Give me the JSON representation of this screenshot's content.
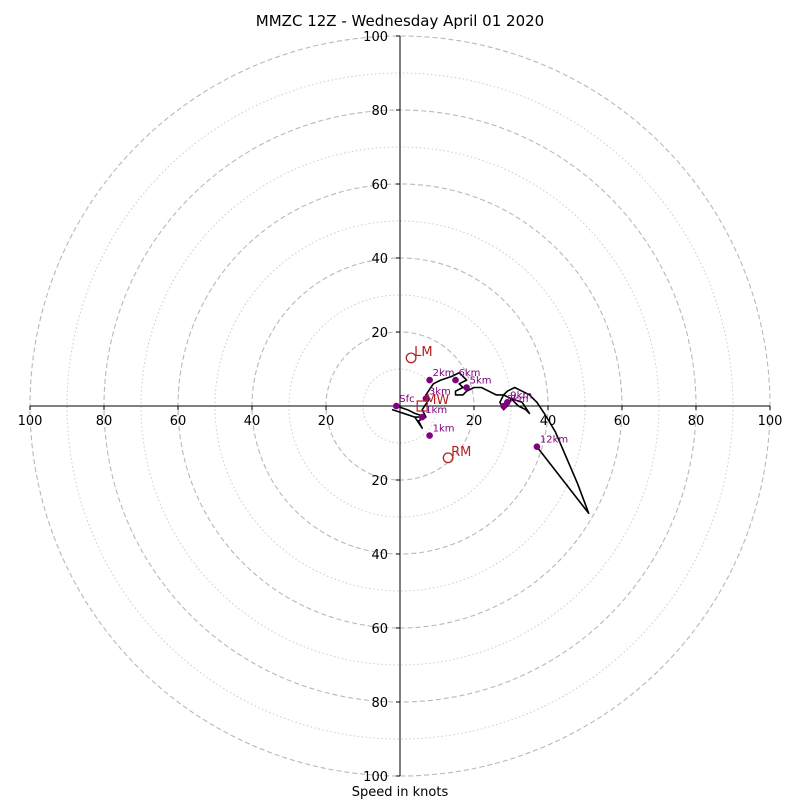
{
  "chart_data": {
    "type": "scatter",
    "subtype": "hodograph",
    "title": "MMZC 12Z - Wednesday April 01 2020",
    "xlabel": "Speed in knots",
    "ylabel": "",
    "xlim": [
      -100,
      100
    ],
    "ylim": [
      -100,
      100
    ],
    "ring_major": [
      20,
      40,
      60,
      80,
      100
    ],
    "ring_minor": [
      10,
      30,
      50,
      70,
      90
    ],
    "x_tick_labels": [
      "100",
      "80",
      "60",
      "40",
      "20",
      "20",
      "40",
      "60",
      "80",
      "100"
    ],
    "x_tick_values": [
      -100,
      -80,
      -60,
      -40,
      -20,
      20,
      40,
      60,
      80,
      100
    ],
    "y_tick_labels": [
      "100",
      "80",
      "60",
      "40",
      "20",
      "20",
      "40",
      "60",
      "80",
      "100"
    ],
    "y_tick_values": [
      100,
      80,
      60,
      40,
      20,
      -20,
      -40,
      -60,
      -80,
      -100
    ],
    "grid": true,
    "series": [
      {
        "kind": "hodograph_trace",
        "color": "#000000",
        "x": [
          -1,
          2,
          4,
          7,
          5,
          6,
          4,
          1,
          -2,
          4,
          7,
          6,
          8,
          7,
          9,
          11,
          14,
          16,
          18,
          16,
          17,
          15,
          15,
          17,
          18,
          20,
          22,
          24,
          26,
          28,
          30,
          31,
          32,
          34,
          35,
          33,
          30,
          29,
          28,
          27,
          28,
          29,
          31,
          33,
          35,
          37,
          39,
          42,
          45,
          48,
          51,
          37
        ],
        "y": [
          0,
          -1,
          -2,
          -3,
          -4,
          -6,
          -3,
          -2,
          -1,
          -3,
          -3,
          -1,
          2,
          3,
          6,
          7,
          8,
          9,
          7,
          6,
          5,
          4,
          3,
          3,
          4,
          5,
          5,
          4,
          3,
          3,
          2,
          1,
          0,
          -1,
          -2,
          1,
          2,
          0,
          -1,
          1,
          3,
          4,
          5,
          4,
          3,
          1,
          -2,
          -7,
          -14,
          -21,
          -29,
          -11
        ]
      },
      {
        "kind": "height_markers",
        "color": "#800080",
        "labels": [
          "Sfc",
          "1km",
          "2km",
          "3km",
          "5km",
          "6km",
          "8km",
          "9km",
          "12km",
          "1km"
        ],
        "x": [
          -1,
          6,
          8,
          7,
          18,
          15,
          28,
          29,
          37,
          8
        ],
        "y": [
          0,
          -3,
          7,
          2,
          5,
          7,
          0,
          1,
          -11,
          -8
        ]
      },
      {
        "kind": "storm_motion",
        "color": "#b22222",
        "labels": [
          "LM",
          "RM",
          "MW"
        ],
        "x": [
          3,
          13,
          6
        ],
        "y": [
          13,
          -14,
          0
        ]
      }
    ]
  }
}
